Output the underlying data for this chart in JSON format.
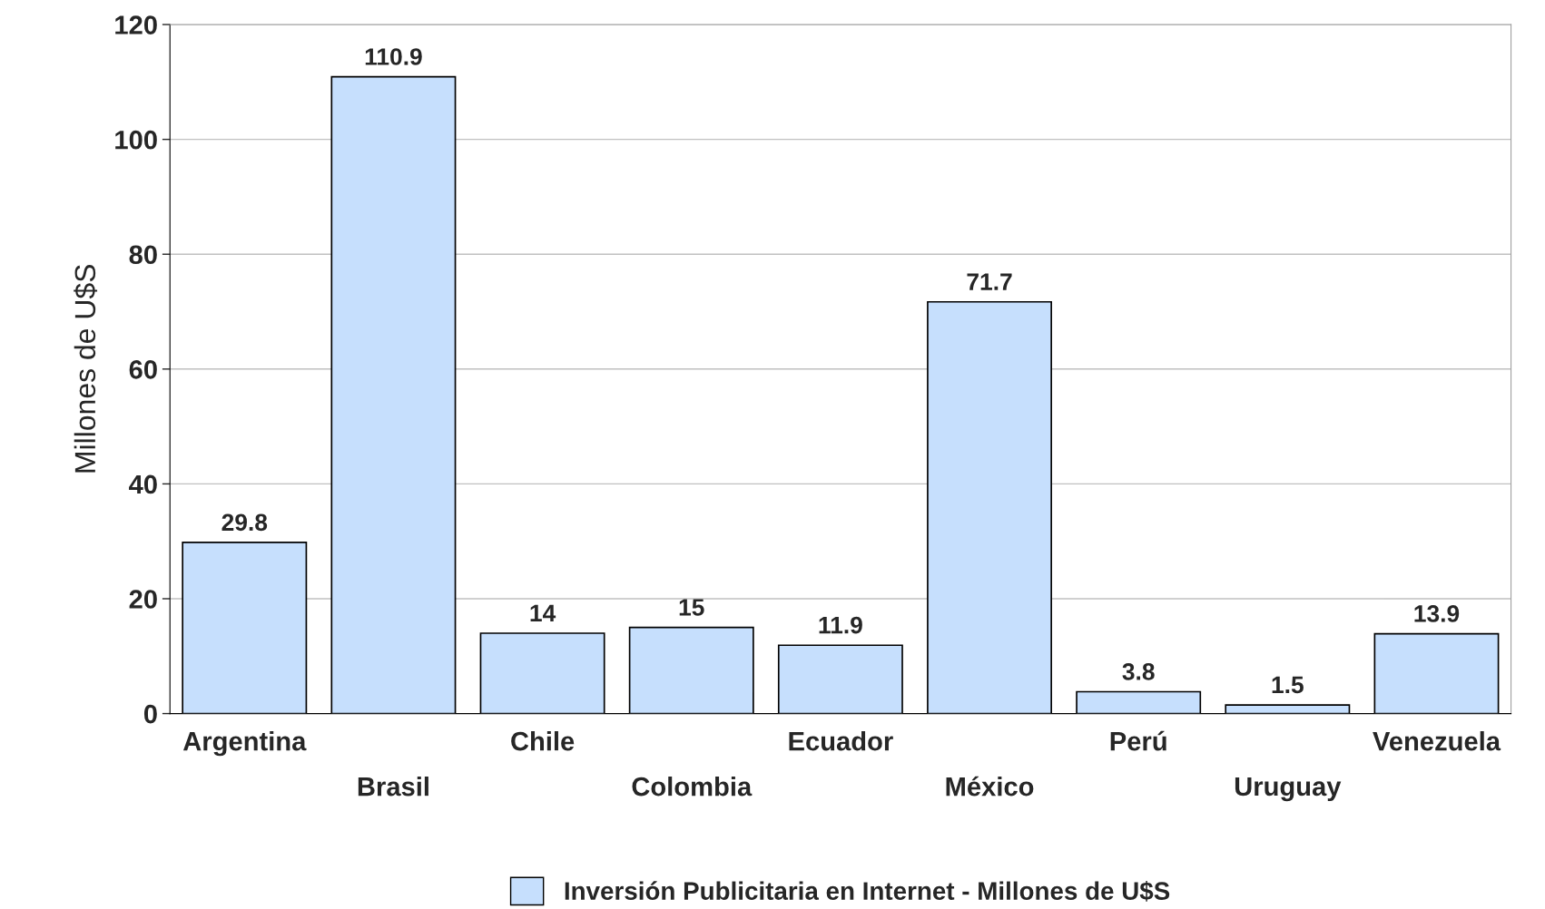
{
  "chart_data": {
    "type": "bar",
    "ylabel": "Millones de U$S",
    "categories": [
      "Argentina",
      "Brasil",
      "Chile",
      "Colombia",
      "Ecuador",
      "México",
      "Perú",
      "Uruguay",
      "Venezuela"
    ],
    "series": [
      {
        "name": "Inversión Publicitaria en Internet - Millones de U$S",
        "color": "#c6dffd",
        "values": [
          29.8,
          110.9,
          14,
          15,
          11.9,
          71.7,
          3.8,
          1.5,
          13.9
        ]
      }
    ],
    "ylim": [
      0,
      120
    ],
    "yticks": [
      0,
      20,
      40,
      60,
      80,
      100,
      120
    ],
    "grid": "y",
    "data_labels": true,
    "legend": "bottom"
  }
}
